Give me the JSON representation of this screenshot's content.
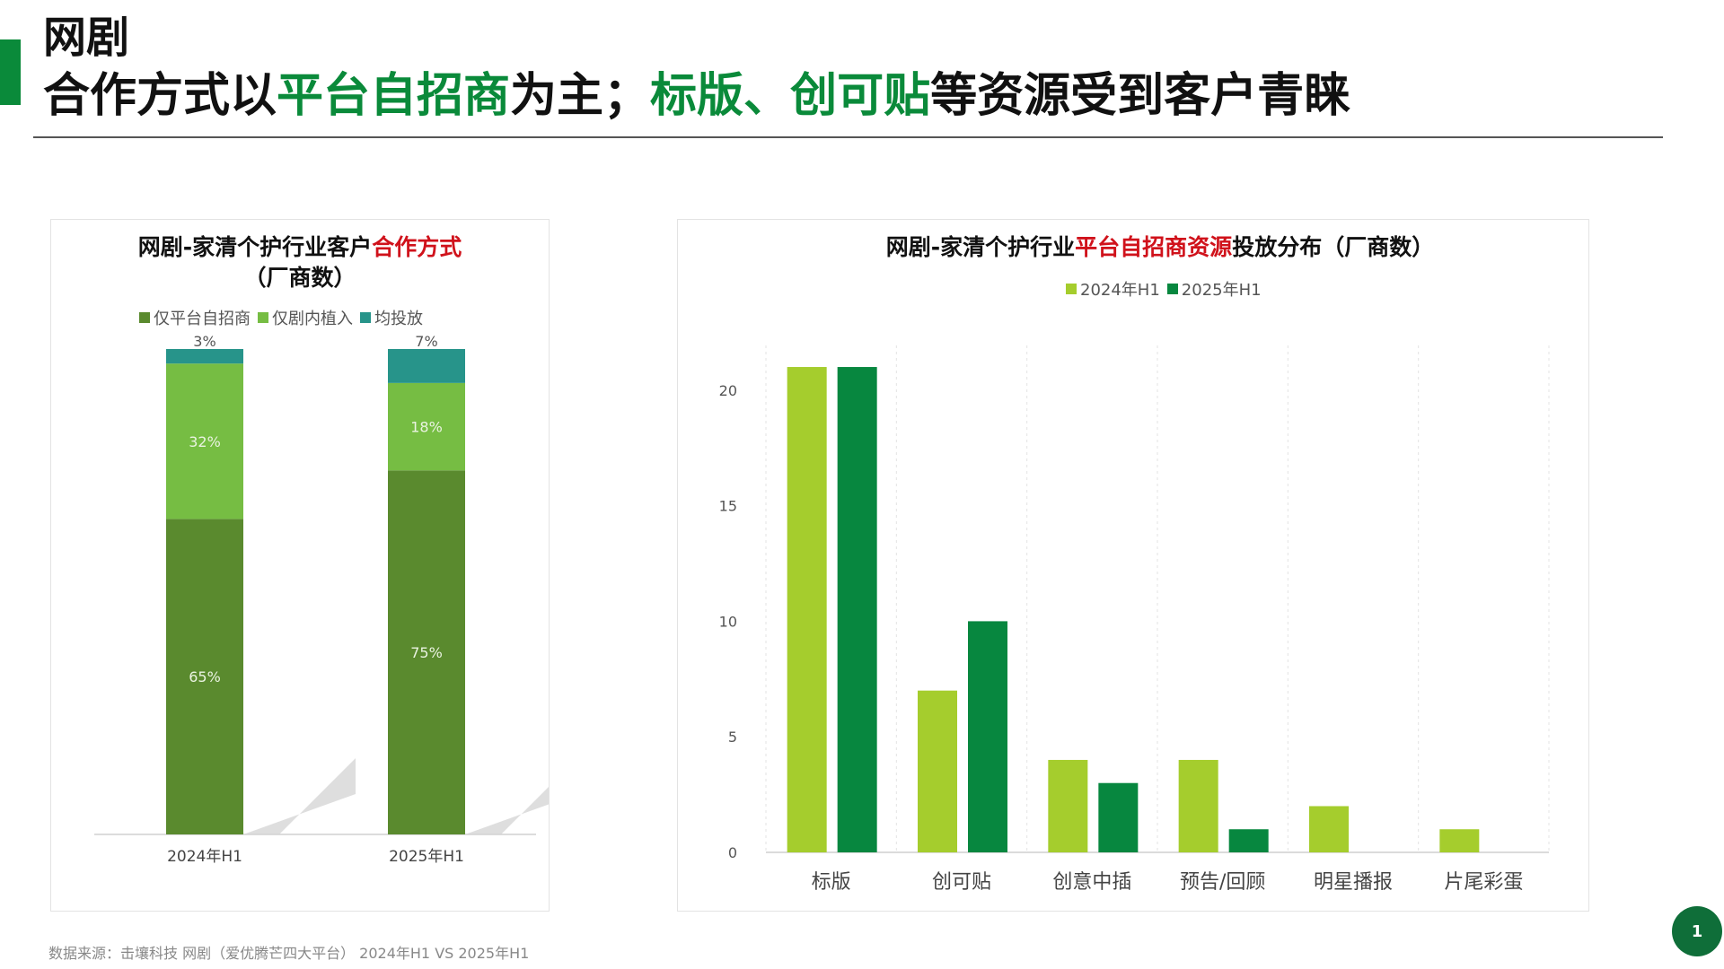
{
  "header": {
    "kicker": "网剧",
    "headline_parts": [
      {
        "text": "合作方式以",
        "highlight": false
      },
      {
        "text": "平台自招商",
        "highlight": true
      },
      {
        "text": "为主；",
        "highlight": false
      },
      {
        "text": "标版、",
        "highlight": true
      },
      {
        "text": "创可贴",
        "highlight": true
      },
      {
        "text": "等资源受到客户青睐",
        "highlight": false
      }
    ]
  },
  "colors": {
    "accent": "#0a8a3a",
    "highlight_red": "#d0121b",
    "dark_green": "#5a8a2e",
    "mid_green": "#76bd43",
    "teal": "#27948a",
    "lime": "#a5cd2d",
    "deep_green": "#07873f"
  },
  "chart_data": [
    {
      "type": "bar",
      "stacked": true,
      "percent": true,
      "title_prefix": "网剧-家清个护行业客户",
      "title_highlight": "合作方式",
      "title_line2": "（厂商数）",
      "categories": [
        "2024年H1",
        "2025年H1"
      ],
      "series": [
        {
          "name": "仅平台自招商",
          "values": [
            65,
            75
          ],
          "labels": [
            "65%",
            "75%"
          ],
          "color": "#5a8a2e"
        },
        {
          "name": "仅剧内植入",
          "values": [
            32,
            18
          ],
          "labels": [
            "32%",
            "18%"
          ],
          "color": "#76bd43"
        },
        {
          "name": "均投放",
          "values": [
            3,
            7
          ],
          "labels": [
            "3%",
            "7%"
          ],
          "color": "#27948a"
        }
      ],
      "legend_position": "top",
      "grid": false
    },
    {
      "type": "bar",
      "title_prefix": "网剧-家清个护行业",
      "title_highlight": "平台自招商资源",
      "title_suffix": "投放分布（厂商数）",
      "categories": [
        "标版",
        "创可贴",
        "创意中插",
        "预告/回顾",
        "明星播报",
        "片尾彩蛋"
      ],
      "series": [
        {
          "name": "2024年H1",
          "values": [
            21,
            7,
            4,
            4,
            2,
            1
          ],
          "color": "#a5cd2d"
        },
        {
          "name": "2025年H1",
          "values": [
            21,
            10,
            3,
            1,
            0,
            0
          ],
          "color": "#07873f"
        }
      ],
      "yticks": [
        "0",
        "5",
        "10",
        "15",
        "20"
      ],
      "ylim": [
        0,
        22
      ],
      "legend_position": "top",
      "grid": true
    }
  ],
  "footer": {
    "source": "数据来源：击壤科技 网剧（爱优腾芒四大平台） 2024年H1 VS 2025年H1"
  },
  "page_number": "1"
}
